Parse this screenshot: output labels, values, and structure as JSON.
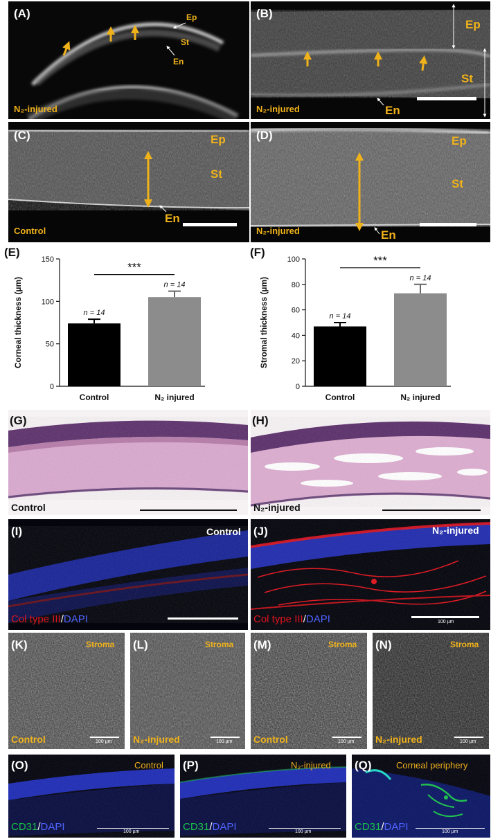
{
  "panels": {
    "A": {
      "label": "(A)",
      "condition": "N₂-injured",
      "layers": {
        "ep": "Ep",
        "st": "St",
        "en": "En"
      }
    },
    "B": {
      "label": "(B)",
      "condition": "N₂-injured",
      "layers": {
        "ep": "Ep",
        "st": "St",
        "en": "En"
      }
    },
    "C": {
      "label": "(C)",
      "condition": "Control",
      "layers": {
        "ep": "Ep",
        "st": "St",
        "en": "En"
      }
    },
    "D": {
      "label": "(D)",
      "condition": "N₂-injured",
      "layers": {
        "ep": "Ep",
        "st": "St",
        "en": "En"
      }
    },
    "G": {
      "label": "(G)",
      "condition": "Control"
    },
    "H": {
      "label": "(H)",
      "condition": "N₂-injured"
    },
    "I": {
      "label": "(I)",
      "condition": "Control",
      "stain_a": "Col type III",
      "stain_sep": "/",
      "stain_b": "DAPI"
    },
    "J": {
      "label": "(J)",
      "condition": "N₂-injured",
      "stain_a": "Col type III",
      "stain_sep": "/",
      "stain_b": "DAPI",
      "scale_text": "100 µm"
    },
    "K": {
      "label": "(K)",
      "region": "Stroma",
      "condition": "Control",
      "scale_text": "100 µm"
    },
    "L": {
      "label": "(L)",
      "region": "Stroma",
      "condition": "N₂-injured",
      "scale_text": "100 µm"
    },
    "M": {
      "label": "(M)",
      "region": "Stroma",
      "condition": "Control",
      "scale_text": "100 µm"
    },
    "N": {
      "label": "(N)",
      "region": "Stroma",
      "condition": "N₂-injured",
      "scale_text": "100 µm"
    },
    "O": {
      "label": "(O)",
      "condition": "Control",
      "stain_a": "CD31",
      "stain_sep": "/",
      "stain_b": "DAPI",
      "scale_text": "100 µm"
    },
    "P": {
      "label": "(P)",
      "condition": "N₂-injured",
      "stain_a": "CD31",
      "stain_sep": "/",
      "stain_b": "DAPI",
      "scale_text": "100 µm"
    },
    "Q": {
      "label": "(Q)",
      "condition": "Corneal periphery",
      "stain_a": "CD31",
      "stain_sep": "/",
      "stain_b": "DAPI",
      "scale_text": "100 µm"
    }
  },
  "colors": {
    "label_gold": "#f0b21a",
    "control_bar": "#000000",
    "injured_bar": "#8c8c8c",
    "col3_red": "#e0141e",
    "dapi_blue": "#2d43e6",
    "cd31_green": "#19c24a"
  },
  "chart_data": [
    {
      "panel_label": "(E)",
      "type": "bar",
      "categories": [
        "Control",
        "N₂ injured"
      ],
      "values": [
        74,
        105
      ],
      "errors": [
        5,
        7
      ],
      "n_labels": [
        "n = 14",
        "n = 14"
      ],
      "significance": "***",
      "ylabel": "Corneal thickness (µm)",
      "ylim": [
        0,
        150
      ],
      "yticks": [
        0,
        50,
        100,
        150
      ]
    },
    {
      "panel_label": "(F)",
      "type": "bar",
      "categories": [
        "Control",
        "N₂ injured"
      ],
      "values": [
        47,
        73
      ],
      "errors": [
        3,
        7
      ],
      "n_labels": [
        "n = 14",
        "n = 14"
      ],
      "significance": "***",
      "ylabel": "Stromal thickness (µm)",
      "ylim": [
        0,
        100
      ],
      "yticks": [
        0,
        20,
        40,
        60,
        80,
        100
      ]
    }
  ]
}
